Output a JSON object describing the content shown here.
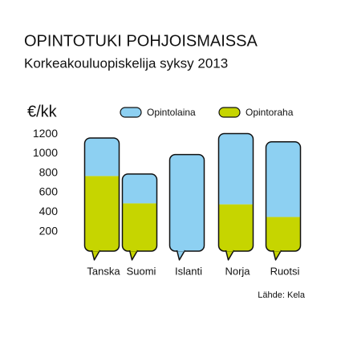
{
  "chart_data": {
    "type": "stacked-bar",
    "title": "OPINTOTUKI POHJOISMAISSA",
    "subtitle": "Korkeakouluopiskelija syksy 2013",
    "y_label": "€/kk",
    "source": "Lähde: Kela",
    "categories": [
      "Tanska",
      "Suomi",
      "Islanti",
      "Norja",
      "Ruotsi"
    ],
    "series": [
      {
        "name": "Opintolaina",
        "color": "#8dd0f2",
        "values": [
          390,
          300,
          990,
          725,
          770
        ]
      },
      {
        "name": "Opintoraha",
        "color": "#c6d500",
        "values": [
          770,
          490,
          0,
          480,
          350
        ]
      }
    ],
    "stack_order": [
      1,
      0
    ],
    "ylim": [
      0,
      1250
    ],
    "yticks": [
      200,
      400,
      600,
      800,
      1000,
      1200
    ],
    "grid": false
  }
}
